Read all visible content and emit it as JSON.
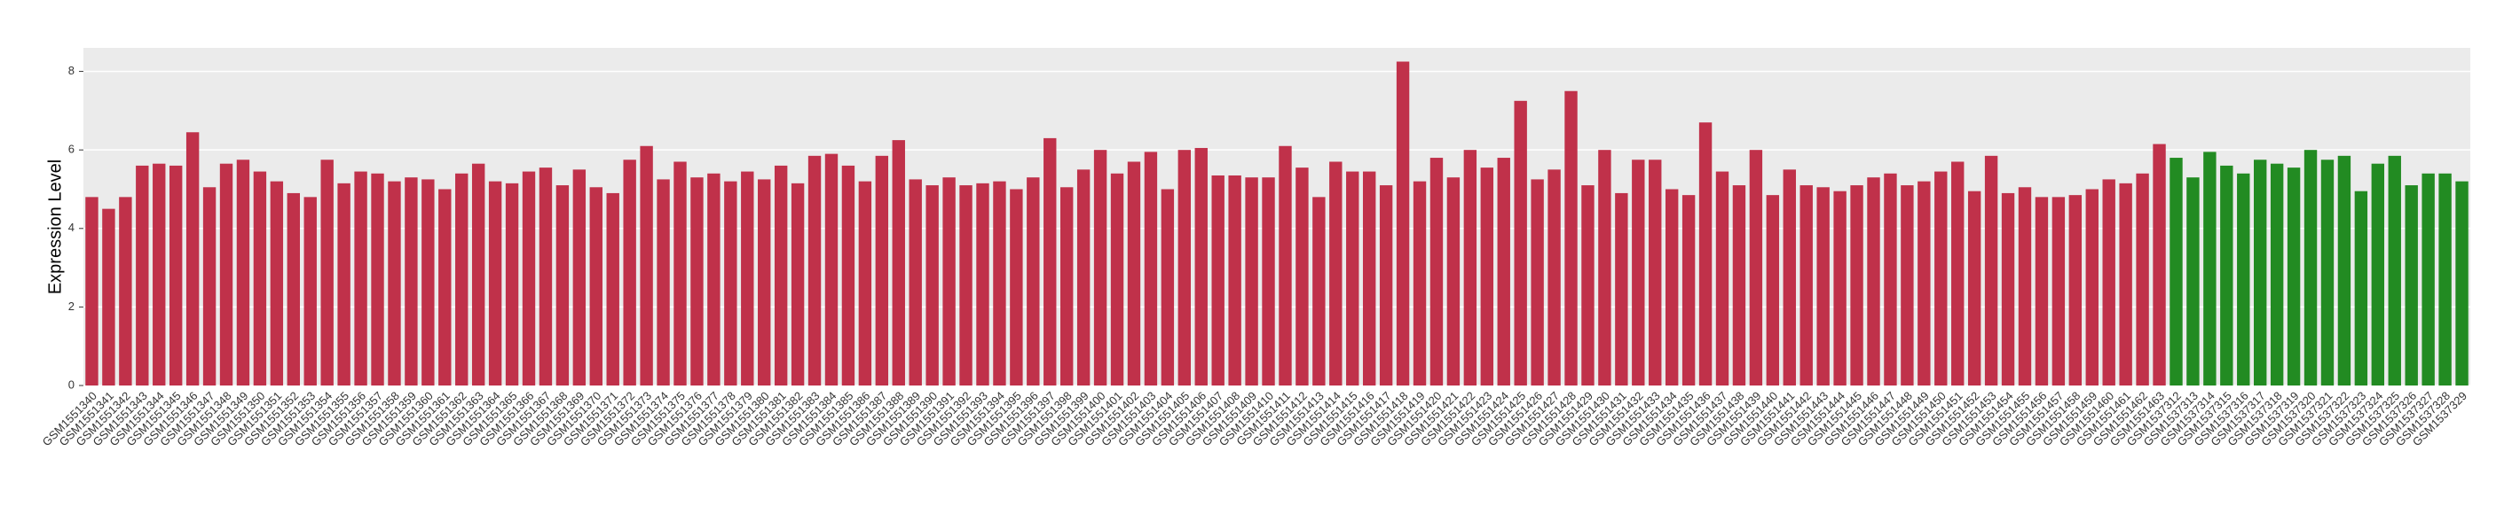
{
  "chart_data": {
    "type": "bar",
    "y_label": "Expression Level",
    "ylim": [
      0,
      8.6
    ],
    "yticks": [
      0,
      2,
      4,
      6,
      8
    ],
    "grid": true,
    "categories": [
      "GSM1551340",
      "GSM1551341",
      "GSM1551342",
      "GSM1551343",
      "GSM1551344",
      "GSM1551345",
      "GSM1551346",
      "GSM1551347",
      "GSM1551348",
      "GSM1551349",
      "GSM1551350",
      "GSM1551351",
      "GSM1551352",
      "GSM1551353",
      "GSM1551354",
      "GSM1551355",
      "GSM1551356",
      "GSM1551357",
      "GSM1551358",
      "GSM1551359",
      "GSM1551360",
      "GSM1551361",
      "GSM1551362",
      "GSM1551363",
      "GSM1551364",
      "GSM1551365",
      "GSM1551366",
      "GSM1551367",
      "GSM1551368",
      "GSM1551369",
      "GSM1551370",
      "GSM1551371",
      "GSM1551372",
      "GSM1551373",
      "GSM1551374",
      "GSM1551375",
      "GSM1551376",
      "GSM1551377",
      "GSM1551378",
      "GSM1551379",
      "GSM1551380",
      "GSM1551381",
      "GSM1551382",
      "GSM1551383",
      "GSM1551384",
      "GSM1551385",
      "GSM1551386",
      "GSM1551387",
      "GSM1551388",
      "GSM1551389",
      "GSM1551390",
      "GSM1551391",
      "GSM1551392",
      "GSM1551393",
      "GSM1551394",
      "GSM1551395",
      "GSM1551396",
      "GSM1551397",
      "GSM1551398",
      "GSM1551399",
      "GSM1551400",
      "GSM1551401",
      "GSM1551402",
      "GSM1551403",
      "GSM1551404",
      "GSM1551405",
      "GSM1551406",
      "GSM1551407",
      "GSM1551408",
      "GSM1551409",
      "GSM1551410",
      "GSM1551411",
      "GSM1551412",
      "GSM1551413",
      "GSM1551414",
      "GSM1551415",
      "GSM1551416",
      "GSM1551417",
      "GSM1551418",
      "GSM1551419",
      "GSM1551420",
      "GSM1551421",
      "GSM1551422",
      "GSM1551423",
      "GSM1551424",
      "GSM1551425",
      "GSM1551426",
      "GSM1551427",
      "GSM1551428",
      "GSM1551429",
      "GSM1551430",
      "GSM1551431",
      "GSM1551432",
      "GSM1551433",
      "GSM1551434",
      "GSM1551435",
      "GSM1551436",
      "GSM1551437",
      "GSM1551438",
      "GSM1551439",
      "GSM1551440",
      "GSM1551441",
      "GSM1551442",
      "GSM1551443",
      "GSM1551444",
      "GSM1551445",
      "GSM1551446",
      "GSM1551447",
      "GSM1551448",
      "GSM1551449",
      "GSM1551450",
      "GSM1551451",
      "GSM1551452",
      "GSM1551453",
      "GSM1551454",
      "GSM1551455",
      "GSM1551456",
      "GSM1551457",
      "GSM1551458",
      "GSM1551459",
      "GSM1551460",
      "GSM1551461",
      "GSM1551462",
      "GSM1551463",
      "GSM1537312",
      "GSM1537313",
      "GSM1537314",
      "GSM1537315",
      "GSM1537316",
      "GSM1537317",
      "GSM1537318",
      "GSM1537319",
      "GSM1537320",
      "GSM1537321",
      "GSM1537322",
      "GSM1537323",
      "GSM1537324",
      "GSM1537325",
      "GSM1537326",
      "GSM1537327",
      "GSM1537328",
      "GSM1537329"
    ],
    "values": [
      4.8,
      4.5,
      4.8,
      5.6,
      5.65,
      5.6,
      6.45,
      5.05,
      5.65,
      5.75,
      5.45,
      5.2,
      4.9,
      4.8,
      5.75,
      5.15,
      5.45,
      5.4,
      5.2,
      5.3,
      5.25,
      5.0,
      5.4,
      5.65,
      5.2,
      5.15,
      5.45,
      5.55,
      5.1,
      5.5,
      5.05,
      4.9,
      5.75,
      6.1,
      5.25,
      5.7,
      5.3,
      5.4,
      5.2,
      5.45,
      5.25,
      5.6,
      5.15,
      5.85,
      5.9,
      5.6,
      5.2,
      5.85,
      6.25,
      5.25,
      5.1,
      5.3,
      5.1,
      5.15,
      5.2,
      5.0,
      5.3,
      6.3,
      5.05,
      5.5,
      6.0,
      5.4,
      5.7,
      5.95,
      5.0,
      6.0,
      6.05,
      5.35,
      5.35,
      5.3,
      5.3,
      6.1,
      5.55,
      4.8,
      5.7,
      5.45,
      5.45,
      5.1,
      8.25,
      5.2,
      5.8,
      5.3,
      6.0,
      5.55,
      5.8,
      7.25,
      5.25,
      5.5,
      7.5,
      5.1,
      6.0,
      4.9,
      5.75,
      5.75,
      5.0,
      4.85,
      6.7,
      5.45,
      5.1,
      6.0,
      4.85,
      5.5,
      5.1,
      5.05,
      4.95,
      5.1,
      5.3,
      5.4,
      5.1,
      5.2,
      5.45,
      5.7,
      4.95,
      5.85,
      4.9,
      5.05,
      4.8,
      4.8,
      4.85,
      5.0,
      5.25,
      5.15,
      5.4,
      6.15,
      5.8,
      5.3,
      5.95,
      5.6,
      5.4,
      5.75,
      5.65,
      5.55,
      6.0,
      5.75,
      5.85,
      4.95,
      5.65,
      5.85,
      5.1,
      5.4,
      5.4,
      5.2
    ],
    "colors": [
      "#c0314a",
      "#c0314a",
      "#c0314a",
      "#c0314a",
      "#c0314a",
      "#c0314a",
      "#c0314a",
      "#c0314a",
      "#c0314a",
      "#c0314a",
      "#c0314a",
      "#c0314a",
      "#c0314a",
      "#c0314a",
      "#c0314a",
      "#c0314a",
      "#c0314a",
      "#c0314a",
      "#c0314a",
      "#c0314a",
      "#c0314a",
      "#c0314a",
      "#c0314a",
      "#c0314a",
      "#c0314a",
      "#c0314a",
      "#c0314a",
      "#c0314a",
      "#c0314a",
      "#c0314a",
      "#c0314a",
      "#c0314a",
      "#c0314a",
      "#c0314a",
      "#c0314a",
      "#c0314a",
      "#c0314a",
      "#c0314a",
      "#c0314a",
      "#c0314a",
      "#c0314a",
      "#c0314a",
      "#c0314a",
      "#c0314a",
      "#c0314a",
      "#c0314a",
      "#c0314a",
      "#c0314a",
      "#c0314a",
      "#c0314a",
      "#c0314a",
      "#c0314a",
      "#c0314a",
      "#c0314a",
      "#c0314a",
      "#c0314a",
      "#c0314a",
      "#c0314a",
      "#c0314a",
      "#c0314a",
      "#c0314a",
      "#c0314a",
      "#c0314a",
      "#c0314a",
      "#c0314a",
      "#c0314a",
      "#c0314a",
      "#c0314a",
      "#c0314a",
      "#c0314a",
      "#c0314a",
      "#c0314a",
      "#c0314a",
      "#c0314a",
      "#c0314a",
      "#c0314a",
      "#c0314a",
      "#c0314a",
      "#c0314a",
      "#c0314a",
      "#c0314a",
      "#c0314a",
      "#c0314a",
      "#c0314a",
      "#c0314a",
      "#c0314a",
      "#c0314a",
      "#c0314a",
      "#c0314a",
      "#c0314a",
      "#c0314a",
      "#c0314a",
      "#c0314a",
      "#c0314a",
      "#c0314a",
      "#c0314a",
      "#c0314a",
      "#c0314a",
      "#c0314a",
      "#c0314a",
      "#c0314a",
      "#c0314a",
      "#c0314a",
      "#c0314a",
      "#c0314a",
      "#c0314a",
      "#c0314a",
      "#c0314a",
      "#c0314a",
      "#c0314a",
      "#c0314a",
      "#c0314a",
      "#c0314a",
      "#c0314a",
      "#c0314a",
      "#c0314a",
      "#c0314a",
      "#c0314a",
      "#c0314a",
      "#c0314a",
      "#c0314a",
      "#c0314a",
      "#c0314a",
      "#c0314a",
      "#228b22",
      "#228b22",
      "#228b22",
      "#228b22",
      "#228b22",
      "#228b22",
      "#228b22",
      "#228b22",
      "#228b22",
      "#228b22",
      "#228b22",
      "#228b22",
      "#228b22",
      "#228b22",
      "#228b22",
      "#228b22",
      "#228b22",
      "#228b22"
    ]
  }
}
